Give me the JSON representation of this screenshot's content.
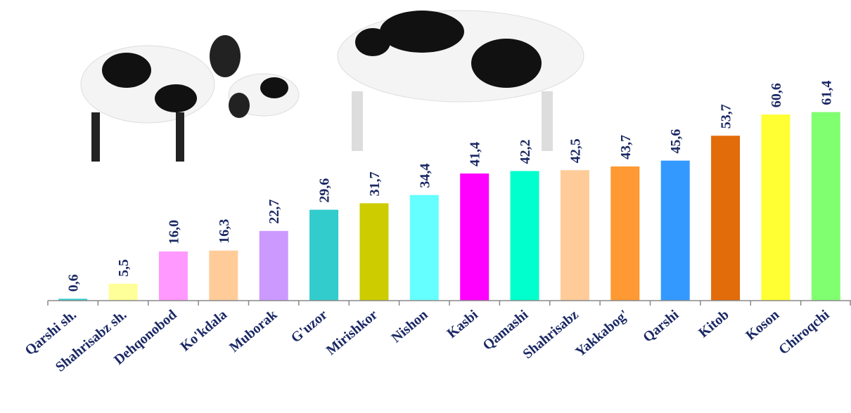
{
  "chart_data": {
    "type": "bar",
    "categories": [
      "Qarshi sh.",
      "Shahrisabz sh.",
      "Dehqonobod",
      "Ko'kdala",
      "Muborak",
      "G'uzor",
      "Mirishkor",
      "Nishon",
      "Kasbi",
      "Qamashi",
      "Shahrisabz",
      "Yakkabog'",
      "Qarshi",
      "Kitob",
      "Koson",
      "Chiroqchi"
    ],
    "values": [
      0.6,
      5.5,
      16.0,
      16.3,
      22.7,
      29.6,
      31.7,
      34.4,
      41.4,
      42.2,
      42.5,
      43.7,
      45.6,
      53.7,
      60.6,
      61.4
    ],
    "value_labels": [
      "0,6",
      "5,5",
      "16,0",
      "16,3",
      "22,7",
      "29,6",
      "31,7",
      "34,4",
      "41,4",
      "42,2",
      "42,5",
      "43,7",
      "45,6",
      "53,7",
      "60,6",
      "61,4"
    ],
    "colors": [
      "#33cccc",
      "#ffff99",
      "#ff99ff",
      "#ffcc99",
      "#cc99ff",
      "#33cccc",
      "#cccc00",
      "#66ffff",
      "#ff00ff",
      "#00ffcc",
      "#ffcc99",
      "#ff9933",
      "#3399ff",
      "#e26b0a",
      "#ffff33",
      "#80ff70"
    ],
    "ylim": [
      0,
      70
    ]
  }
}
